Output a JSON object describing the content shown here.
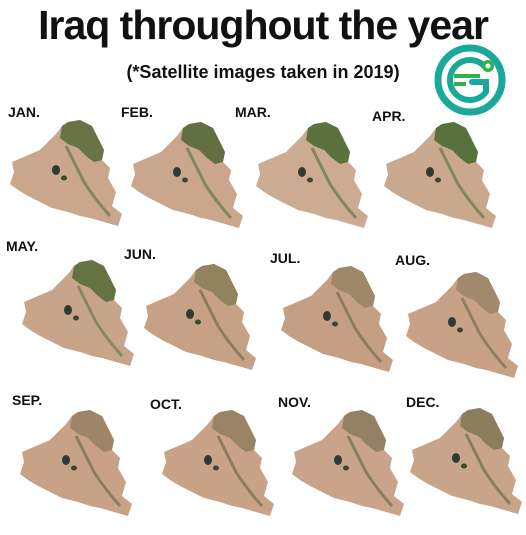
{
  "header": {
    "title": "Iraq throughout the year",
    "subtitle": "(*Satellite images taken in 2019)"
  },
  "logo": {
    "icon": "globe-logo-icon",
    "colors": {
      "ring": "#1aa89a",
      "accent": "#2fb34a"
    }
  },
  "months": [
    {
      "label": "JAN.",
      "icon": "iraq-satellite-map-icon",
      "land": "#c9a68c",
      "veg": "#5d6e3e",
      "river": "#6f7d55"
    },
    {
      "label": "FEB.",
      "icon": "iraq-satellite-map-icon",
      "land": "#c9a68c",
      "veg": "#56693a",
      "river": "#6f7d55"
    },
    {
      "label": "MAR.",
      "icon": "iraq-satellite-map-icon",
      "land": "#cdab92",
      "veg": "#4f6a35",
      "river": "#6a7d50"
    },
    {
      "label": "APR.",
      "icon": "iraq-satellite-map-icon",
      "land": "#caa88d",
      "veg": "#4d6a34",
      "river": "#6a7d50"
    },
    {
      "label": "MAY.",
      "icon": "iraq-satellite-map-icon",
      "land": "#c8a48a",
      "veg": "#5a6d3a",
      "river": "#75805a"
    },
    {
      "label": "JUN.",
      "icon": "iraq-satellite-map-icon",
      "land": "#c6a185",
      "veg": "#8a7f5a",
      "river": "#7a7458"
    },
    {
      "label": "JUL.",
      "icon": "iraq-satellite-map-icon",
      "land": "#c59f83",
      "veg": "#9a8466",
      "river": "#7a7458"
    },
    {
      "label": "AUG.",
      "icon": "iraq-satellite-map-icon",
      "land": "#c7a287",
      "veg": "#9d8669",
      "river": "#7d775a"
    },
    {
      "label": "SEP.",
      "icon": "iraq-satellite-map-icon",
      "land": "#c8a287",
      "veg": "#9a8265",
      "river": "#7a7458"
    },
    {
      "label": "OCT.",
      "icon": "iraq-satellite-map-icon",
      "land": "#c9a388",
      "veg": "#957f62",
      "river": "#7a7458"
    },
    {
      "label": "NOV.",
      "icon": "iraq-satellite-map-icon",
      "land": "#c9a48a",
      "veg": "#8e7d5e",
      "river": "#777456"
    },
    {
      "label": "DEC.",
      "icon": "iraq-satellite-map-icon",
      "land": "#c8a48a",
      "veg": "#857a57",
      "river": "#767454"
    }
  ]
}
